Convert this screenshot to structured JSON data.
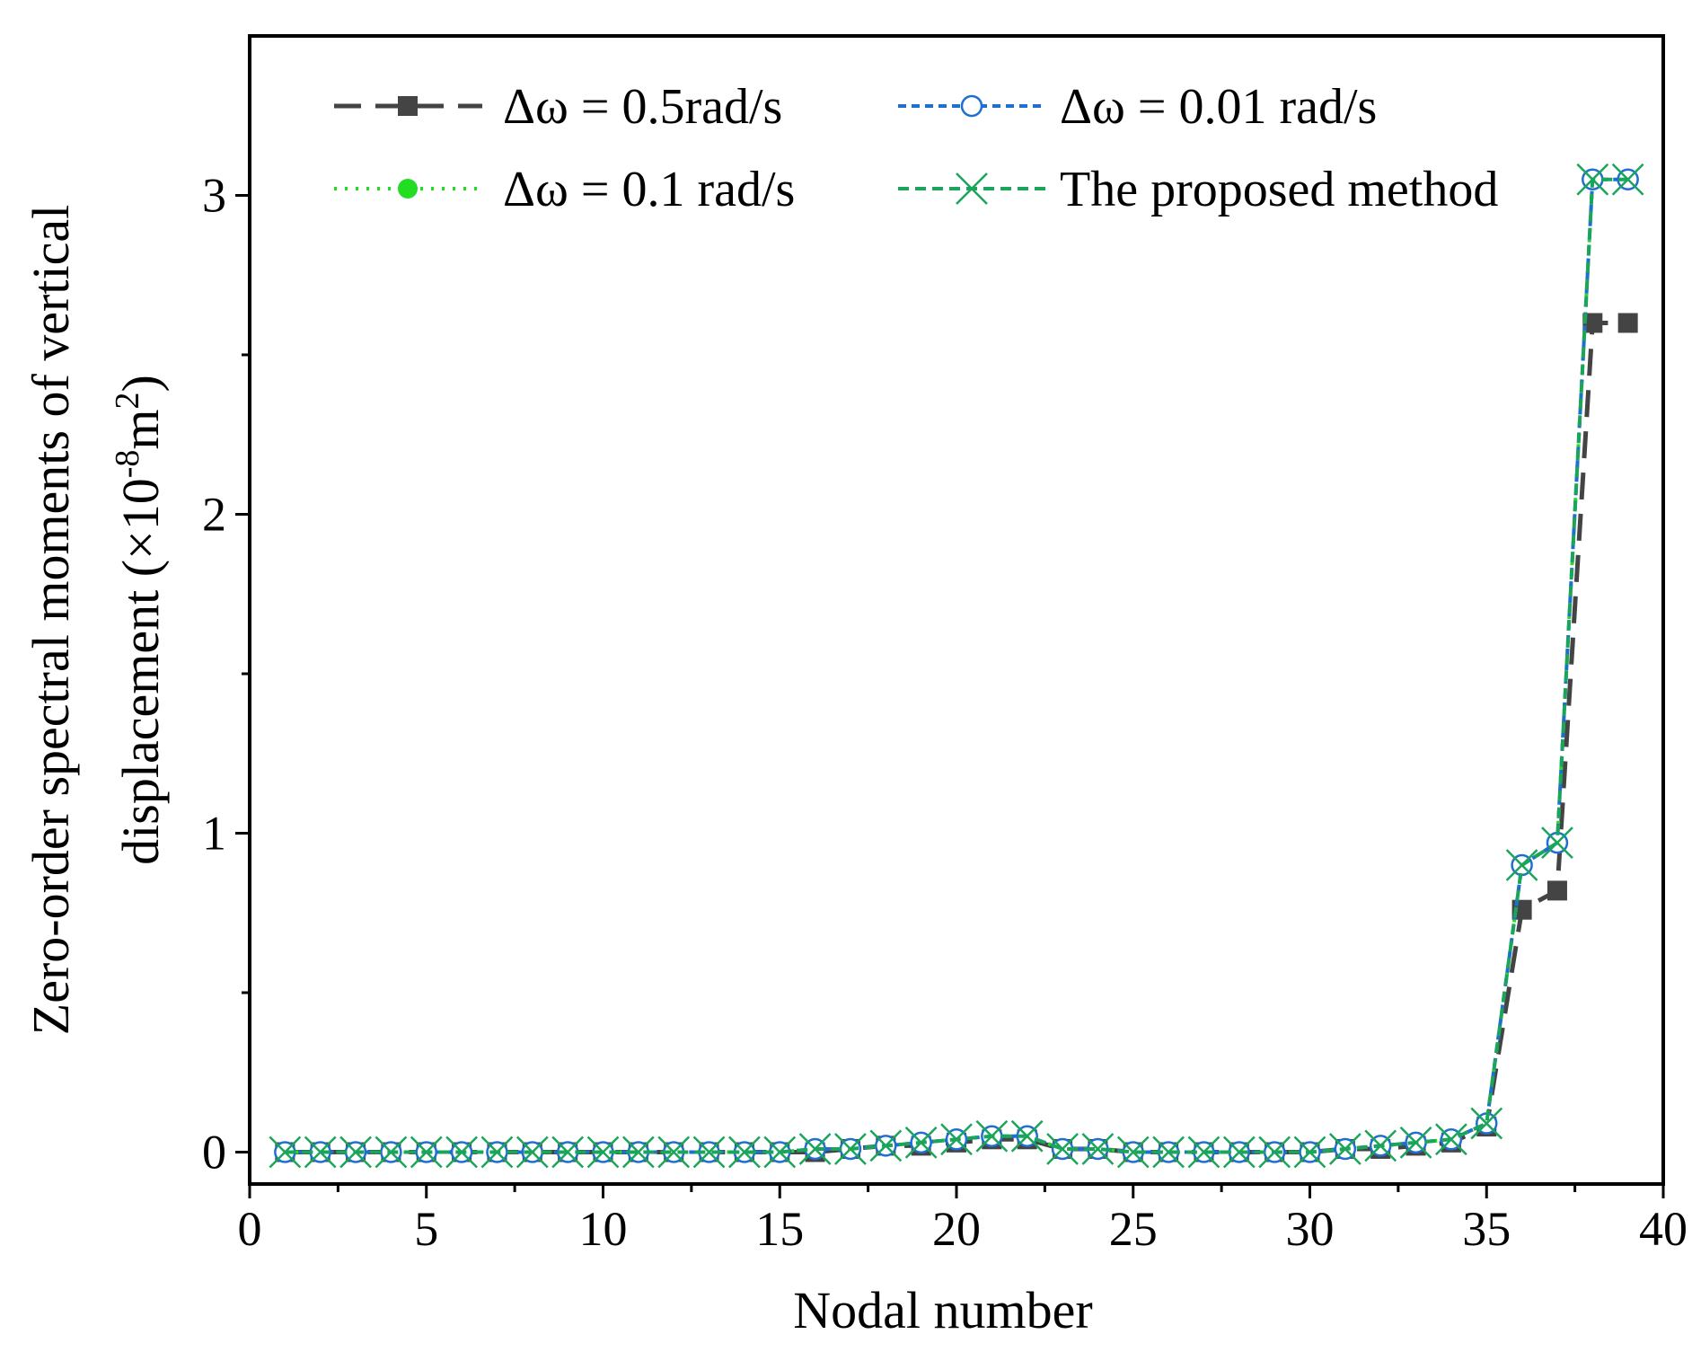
{
  "colors": {
    "series_0": "#444444",
    "series_1": "#1f6fd1",
    "series_2": "#22dd22",
    "series_3": "#1aa55a"
  },
  "chart_data": {
    "type": "line",
    "xlabel": "Nodal number",
    "ylabel_line1": "Zero-order spectral moments of vertical",
    "ylabel_line2_prefix": "displacement (×10",
    "ylabel_exp1": "-8",
    "ylabel_mid": "m",
    "ylabel_exp2": "2",
    "ylabel_suffix": ")",
    "xlim": [
      0,
      40
    ],
    "ylim": [
      -0.1,
      3.5
    ],
    "xticks": [
      0,
      5,
      10,
      15,
      20,
      25,
      30,
      35,
      40
    ],
    "yticks": [
      0,
      1,
      2,
      3
    ],
    "legend_position": "top",
    "series": [
      {
        "name": "Δω = 0.5rad/s",
        "marker": "square",
        "dash": "long-dash",
        "x": [
          1,
          2,
          3,
          4,
          5,
          6,
          7,
          8,
          9,
          10,
          11,
          12,
          13,
          14,
          15,
          16,
          17,
          18,
          19,
          20,
          21,
          22,
          23,
          24,
          25,
          26,
          27,
          28,
          29,
          30,
          31,
          32,
          33,
          34,
          35,
          36,
          37,
          38,
          39
        ],
        "y": [
          0,
          0,
          0,
          0,
          0,
          0,
          0,
          0,
          0,
          0,
          0,
          0,
          0,
          0,
          0,
          0,
          0.01,
          0.02,
          0.02,
          0.03,
          0.04,
          0.04,
          0.01,
          0.01,
          0,
          0,
          0,
          0,
          0,
          0,
          0.01,
          0.01,
          0.02,
          0.03,
          0.08,
          0.76,
          0.82,
          2.6,
          2.6
        ]
      },
      {
        "name": "Δω = 0.01 rad/s",
        "marker": "open-circle",
        "dash": "short-dash",
        "x": [
          1,
          2,
          3,
          4,
          5,
          6,
          7,
          8,
          9,
          10,
          11,
          12,
          13,
          14,
          15,
          16,
          17,
          18,
          19,
          20,
          21,
          22,
          23,
          24,
          25,
          26,
          27,
          28,
          29,
          30,
          31,
          32,
          33,
          34,
          35,
          36,
          37,
          38,
          39
        ],
        "y": [
          0,
          0,
          0,
          0,
          0,
          0,
          0,
          0,
          0,
          0,
          0,
          0,
          0,
          0,
          0,
          0.01,
          0.01,
          0.02,
          0.03,
          0.04,
          0.05,
          0.05,
          0.01,
          0.01,
          0,
          0,
          0,
          0,
          0,
          0,
          0.01,
          0.02,
          0.03,
          0.04,
          0.09,
          0.9,
          0.97,
          3.05,
          3.05
        ]
      },
      {
        "name": "Δω = 0.1 rad/s",
        "marker": "filled-circle",
        "dash": "dotted",
        "x": [
          1,
          2,
          3,
          4,
          5,
          6,
          7,
          8,
          9,
          10,
          11,
          12,
          13,
          14,
          15,
          16,
          17,
          18,
          19,
          20,
          21,
          22,
          23,
          24,
          25,
          26,
          27,
          28,
          29,
          30,
          31,
          32,
          33,
          34,
          35,
          36,
          37,
          38,
          39
        ],
        "y": [
          0,
          0,
          0,
          0,
          0,
          0,
          0,
          0,
          0,
          0,
          0,
          0,
          0,
          0,
          0,
          0.01,
          0.01,
          0.02,
          0.03,
          0.04,
          0.05,
          0.05,
          0.01,
          0.01,
          0,
          0,
          0,
          0,
          0,
          0,
          0.01,
          0.02,
          0.03,
          0.04,
          0.09,
          0.9,
          0.97,
          3.05,
          3.05
        ]
      },
      {
        "name": "The proposed method",
        "marker": "cross",
        "dash": "dashed",
        "x": [
          1,
          2,
          3,
          4,
          5,
          6,
          7,
          8,
          9,
          10,
          11,
          12,
          13,
          14,
          15,
          16,
          17,
          18,
          19,
          20,
          21,
          22,
          23,
          24,
          25,
          26,
          27,
          28,
          29,
          30,
          31,
          32,
          33,
          34,
          35,
          36,
          37,
          38,
          39
        ],
        "y": [
          0,
          0,
          0,
          0,
          0,
          0,
          0,
          0,
          0,
          0,
          0,
          0,
          0,
          0,
          0,
          0.01,
          0.01,
          0.02,
          0.03,
          0.04,
          0.05,
          0.05,
          0.01,
          0.01,
          0,
          0,
          0,
          0,
          0,
          0,
          0.01,
          0.02,
          0.03,
          0.04,
          0.09,
          0.9,
          0.97,
          3.05,
          3.05
        ]
      }
    ]
  }
}
